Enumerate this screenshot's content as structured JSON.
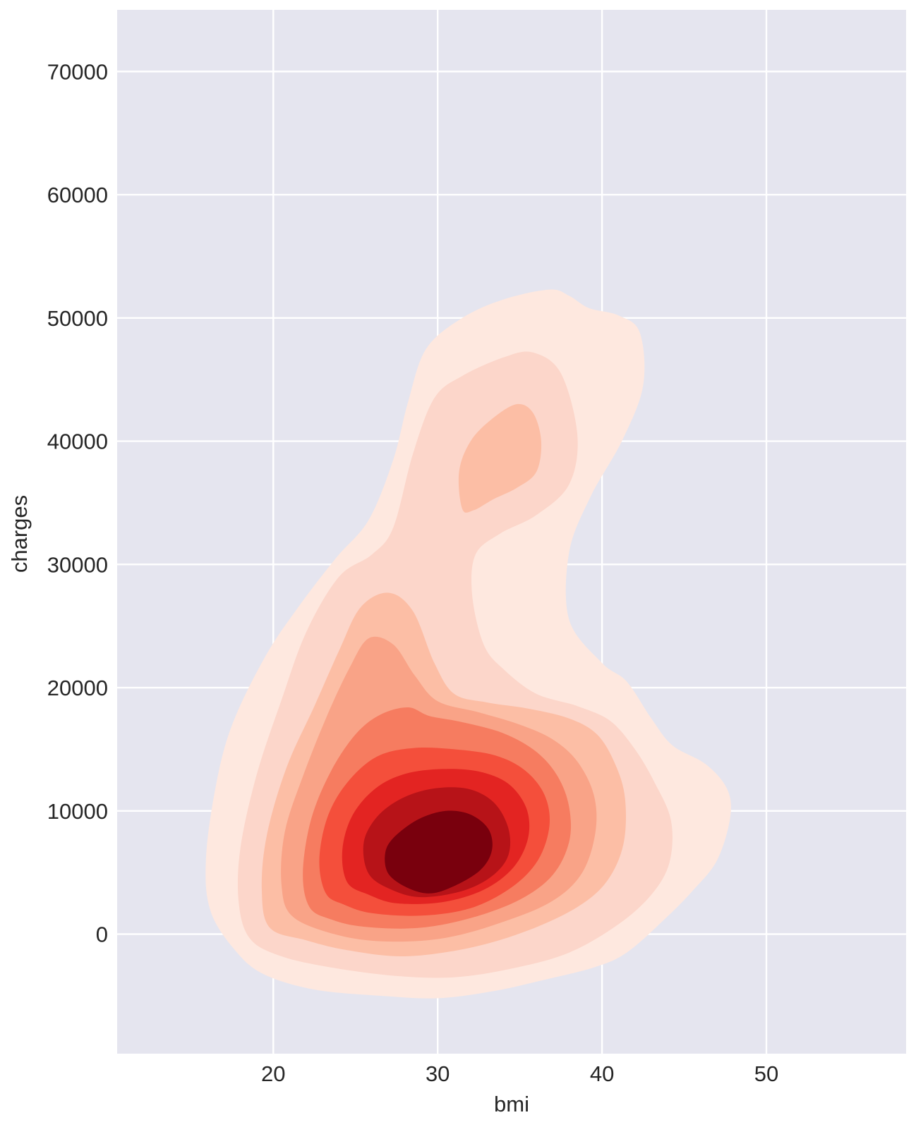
{
  "chart_data": {
    "type": "kde_contour",
    "xlabel": "bmi",
    "ylabel": "charges",
    "xlim": [
      10.5,
      58.5
    ],
    "ylim": [
      -9700,
      75000
    ],
    "x_ticks": [
      20,
      30,
      40,
      50
    ],
    "y_ticks": [
      0,
      10000,
      20000,
      30000,
      40000,
      50000,
      60000,
      70000
    ],
    "x_tick_labels": [
      "20",
      "30",
      "40",
      "50"
    ],
    "y_tick_labels": [
      "0",
      "10000",
      "20000",
      "30000",
      "40000",
      "50000",
      "60000",
      "70000"
    ],
    "grid": true,
    "background_color": "#e5e5ef",
    "grid_color": "#ffffff",
    "colormap": "Reds",
    "levels": [
      {
        "level": 1,
        "color": "#fee8df",
        "outline": [
          [
            17.8,
            -1500
          ],
          [
            16.2,
            1800
          ],
          [
            15.9,
            6000
          ],
          [
            16.5,
            12000
          ],
          [
            17.5,
            17000
          ],
          [
            19.5,
            22500
          ],
          [
            21.5,
            26500
          ],
          [
            23.8,
            30500
          ],
          [
            25.8,
            33600
          ],
          [
            27.3,
            38500
          ],
          [
            28.2,
            43200
          ],
          [
            29.3,
            47500
          ],
          [
            31.5,
            50000
          ],
          [
            34.0,
            51500
          ],
          [
            36.8,
            52300
          ],
          [
            38.0,
            51800
          ],
          [
            39.2,
            50800
          ],
          [
            41.0,
            50200
          ],
          [
            42.3,
            48800
          ],
          [
            42.5,
            44500
          ],
          [
            41.2,
            40000
          ],
          [
            39.3,
            35500
          ],
          [
            38.0,
            31000
          ],
          [
            38.0,
            25500
          ],
          [
            40.0,
            22000
          ],
          [
            41.5,
            20500
          ],
          [
            43.0,
            17500
          ],
          [
            44.3,
            15300
          ],
          [
            46.3,
            13800
          ],
          [
            47.6,
            11800
          ],
          [
            47.8,
            9500
          ],
          [
            47.0,
            6000
          ],
          [
            45.5,
            3500
          ],
          [
            43.8,
            1200
          ],
          [
            41.5,
            -1500
          ],
          [
            39.5,
            -2700
          ],
          [
            36.5,
            -3700
          ],
          [
            33.5,
            -4600
          ],
          [
            30.0,
            -5200
          ],
          [
            26.5,
            -5000
          ],
          [
            22.5,
            -4500
          ],
          [
            19.5,
            -3300
          ]
        ]
      },
      {
        "level": 2,
        "color": "#fcd6ca",
        "outline": [
          [
            18.6,
            -400
          ],
          [
            17.9,
            2500
          ],
          [
            18.0,
            7000
          ],
          [
            19.0,
            13000
          ],
          [
            20.5,
            19000
          ],
          [
            22.0,
            24500
          ],
          [
            24.0,
            29000
          ],
          [
            26.0,
            30800
          ],
          [
            27.3,
            33000
          ],
          [
            28.5,
            39000
          ],
          [
            29.8,
            43500
          ],
          [
            31.5,
            45300
          ],
          [
            34.0,
            46800
          ],
          [
            35.8,
            47200
          ],
          [
            37.5,
            45500
          ],
          [
            38.5,
            40500
          ],
          [
            38.0,
            36500
          ],
          [
            36.0,
            34000
          ],
          [
            33.8,
            32500
          ],
          [
            32.3,
            30800
          ],
          [
            32.1,
            27500
          ],
          [
            32.8,
            23500
          ],
          [
            34.0,
            21500
          ],
          [
            36.0,
            19500
          ],
          [
            38.5,
            18500
          ],
          [
            40.5,
            17300
          ],
          [
            42.0,
            15000
          ],
          [
            43.2,
            12300
          ],
          [
            44.2,
            9200
          ],
          [
            44.1,
            5800
          ],
          [
            43.0,
            3200
          ],
          [
            41.0,
            800
          ],
          [
            38.0,
            -1500
          ],
          [
            34.5,
            -2800
          ],
          [
            31.0,
            -3500
          ],
          [
            27.5,
            -3400
          ],
          [
            23.5,
            -2700
          ],
          [
            20.5,
            -1800
          ]
        ]
      },
      {
        "level": 3,
        "color": "#fcbea5",
        "outline": [
          [
            19.8,
            500
          ],
          [
            19.3,
            3500
          ],
          [
            19.6,
            8000
          ],
          [
            20.8,
            13500
          ],
          [
            22.5,
            18500
          ],
          [
            24.0,
            23000
          ],
          [
            25.3,
            26500
          ],
          [
            27.0,
            27700
          ],
          [
            28.5,
            26200
          ],
          [
            29.8,
            22000
          ],
          [
            31.0,
            19500
          ],
          [
            33.0,
            18800
          ],
          [
            35.5,
            18300
          ],
          [
            38.0,
            17500
          ],
          [
            39.7,
            16200
          ],
          [
            40.8,
            13800
          ],
          [
            41.4,
            11000
          ],
          [
            41.3,
            7300
          ],
          [
            40.3,
            4300
          ],
          [
            38.5,
            2200
          ],
          [
            35.5,
            300
          ],
          [
            32.0,
            -1100
          ],
          [
            28.0,
            -1800
          ],
          [
            24.5,
            -1300
          ],
          [
            22.0,
            -500
          ]
        ]
      },
      {
        "level": 4,
        "color": "#f9a387",
        "outline": [
          [
            21.2,
            1400
          ],
          [
            20.5,
            4000
          ],
          [
            20.7,
            8300
          ],
          [
            21.8,
            12800
          ],
          [
            23.2,
            17500
          ],
          [
            24.6,
            21500
          ],
          [
            25.8,
            24000
          ],
          [
            27.3,
            23500
          ],
          [
            28.6,
            21000
          ],
          [
            30.0,
            18900
          ],
          [
            32.5,
            18000
          ],
          [
            35.0,
            17000
          ],
          [
            37.0,
            15800
          ],
          [
            38.5,
            14000
          ],
          [
            39.5,
            11300
          ],
          [
            39.6,
            8300
          ],
          [
            38.8,
            5000
          ],
          [
            37.0,
            2700
          ],
          [
            34.0,
            1000
          ],
          [
            30.5,
            -300
          ],
          [
            27.0,
            -600
          ],
          [
            24.0,
            -100
          ]
        ]
      },
      {
        "level": 5,
        "color": "#f67c60",
        "outline": [
          [
            22.2,
            2200
          ],
          [
            21.8,
            5000
          ],
          [
            22.3,
            9300
          ],
          [
            23.5,
            13200
          ],
          [
            25.0,
            16200
          ],
          [
            26.5,
            17800
          ],
          [
            28.2,
            18400
          ],
          [
            29.5,
            17700
          ],
          [
            31.5,
            17200
          ],
          [
            34.0,
            16300
          ],
          [
            36.0,
            14800
          ],
          [
            37.3,
            12800
          ],
          [
            38.0,
            10300
          ],
          [
            38.0,
            7500
          ],
          [
            37.0,
            4800
          ],
          [
            35.0,
            2800
          ],
          [
            32.0,
            1300
          ],
          [
            28.8,
            500
          ],
          [
            25.5,
            600
          ],
          [
            23.5,
            1200
          ]
        ]
      },
      {
        "level": 6,
        "color": "#f44f3b",
        "outline": [
          [
            23.2,
            3300
          ],
          [
            22.8,
            6000
          ],
          [
            23.3,
            9500
          ],
          [
            24.5,
            12300
          ],
          [
            26.3,
            14400
          ],
          [
            28.5,
            15100
          ],
          [
            31.0,
            15000
          ],
          [
            33.5,
            14500
          ],
          [
            35.3,
            13300
          ],
          [
            36.5,
            11300
          ],
          [
            36.8,
            8800
          ],
          [
            36.1,
            6000
          ],
          [
            34.5,
            3800
          ],
          [
            32.0,
            2100
          ],
          [
            29.0,
            1500
          ],
          [
            26.0,
            1700
          ],
          [
            24.3,
            2400
          ]
        ]
      },
      {
        "level": 7,
        "color": "#e32422",
        "outline": [
          [
            24.5,
            4200
          ],
          [
            24.2,
            6800
          ],
          [
            24.8,
            9600
          ],
          [
            26.2,
            11800
          ],
          [
            28.0,
            13000
          ],
          [
            30.3,
            13400
          ],
          [
            32.5,
            13200
          ],
          [
            34.3,
            12200
          ],
          [
            35.4,
            10200
          ],
          [
            35.5,
            7800
          ],
          [
            34.6,
            5400
          ],
          [
            32.8,
            3600
          ],
          [
            30.3,
            2600
          ],
          [
            27.5,
            2500
          ],
          [
            25.8,
            3200
          ]
        ]
      },
      {
        "level": 8,
        "color": "#b71318",
        "outline": [
          [
            25.8,
            4900
          ],
          [
            25.5,
            7400
          ],
          [
            26.3,
            9500
          ],
          [
            27.8,
            11000
          ],
          [
            29.7,
            11800
          ],
          [
            31.8,
            11800
          ],
          [
            33.4,
            10700
          ],
          [
            34.3,
            8600
          ],
          [
            34.3,
            6400
          ],
          [
            33.3,
            4700
          ],
          [
            31.5,
            3500
          ],
          [
            29.0,
            3000
          ],
          [
            27.2,
            3600
          ]
        ]
      },
      {
        "level": 9,
        "color": "#79000d",
        "outline": [
          [
            27.0,
            4900
          ],
          [
            26.8,
            6500
          ],
          [
            27.3,
            7800
          ],
          [
            28.8,
            9300
          ],
          [
            30.5,
            10000
          ],
          [
            32.0,
            9700
          ],
          [
            33.1,
            8500
          ],
          [
            33.3,
            6800
          ],
          [
            32.6,
            5200
          ],
          [
            31.0,
            3900
          ],
          [
            29.5,
            3300
          ],
          [
            28.1,
            3800
          ]
        ]
      },
      {
        "level": 3,
        "color": "#fcbea5",
        "outline": [
          [
            31.5,
            34500
          ],
          [
            31.3,
            37500
          ],
          [
            32.0,
            40000
          ],
          [
            33.3,
            41800
          ],
          [
            34.8,
            43000
          ],
          [
            35.8,
            42300
          ],
          [
            36.3,
            40000
          ],
          [
            36.0,
            37500
          ],
          [
            34.8,
            36200
          ],
          [
            33.4,
            35300
          ],
          [
            32.2,
            34400
          ]
        ]
      }
    ]
  }
}
